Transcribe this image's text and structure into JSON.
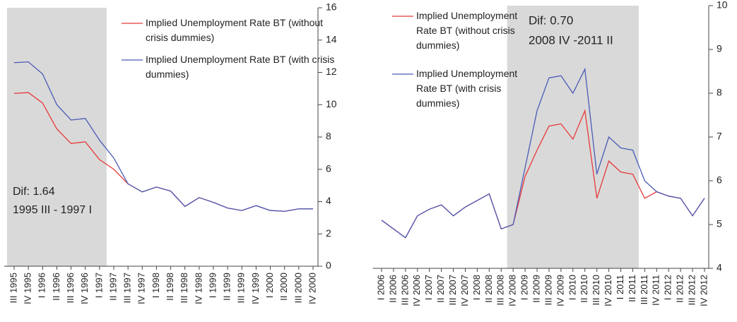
{
  "chart_data": [
    {
      "type": "line",
      "categories": [
        "III 1995",
        "IV 1995",
        "I 1996",
        "II 1996",
        "III 1996",
        "IV 1996",
        "I 1997",
        "II 1997",
        "III 1997",
        "IV 1997",
        "I 1998",
        "II 1998",
        "III 1998",
        "IV 1998",
        "I 1999",
        "II 1999",
        "III 1999",
        "IV 1999",
        "I 2000",
        "II 2000",
        "III 2000",
        "IV 2000"
      ],
      "series": [
        {
          "name": "Implied Unemployment  Rate BT (without crisis dummies)",
          "color": "#e8393a",
          "values": [
            10.7,
            10.75,
            10.1,
            8.5,
            7.6,
            7.7,
            6.6,
            6.0,
            5.1,
            4.6,
            4.9,
            4.65,
            3.7,
            4.25,
            3.95,
            3.6,
            3.45,
            3.75,
            3.45,
            3.4,
            3.55,
            3.55
          ]
        },
        {
          "name": "Implied Unemployment  Rate BT (with crisis dummies)",
          "color": "#4a5bb5",
          "values": [
            12.6,
            12.65,
            11.9,
            10.0,
            9.05,
            9.15,
            7.8,
            6.7,
            5.1,
            4.6,
            4.9,
            4.65,
            3.7,
            4.25,
            3.95,
            3.6,
            3.45,
            3.75,
            3.45,
            3.4,
            3.55,
            3.55
          ]
        }
      ],
      "ylim": [
        0,
        16
      ],
      "yticks": [
        0,
        2,
        4,
        6,
        8,
        10,
        12,
        14,
        16
      ],
      "highlight": [
        "III 1995",
        "I 1997"
      ],
      "annotation": [
        "Dif: 1.64",
        "1995 III - 1997 I"
      ]
    },
    {
      "type": "line",
      "categories": [
        "I 2006",
        "II 2006",
        "III 2006",
        "IV 2006",
        "I 2007",
        "II 2007",
        "III 2007",
        "IV 2007",
        "I 2008",
        "II 2008",
        "III 2008",
        "IV 2008",
        "I 2009",
        "II 2009",
        "III 2009",
        "IV 2009",
        "I 2010",
        "II 2010",
        "III 2010",
        "IV 2010",
        "I 2011",
        "II 2011",
        "III 2011",
        "IV 2011",
        "I 2012",
        "II 2012",
        "III 2012",
        "IV 2012"
      ],
      "series": [
        {
          "name": "Implied Unemployment Rate BT (without crisis dummies)",
          "color": "#e8393a",
          "values": [
            5.1,
            4.9,
            4.7,
            5.2,
            5.35,
            5.45,
            5.2,
            5.4,
            5.55,
            5.7,
            4.9,
            5.0,
            6.1,
            6.7,
            7.25,
            7.3,
            6.95,
            7.6,
            5.6,
            6.45,
            6.2,
            6.15,
            5.6,
            5.75,
            5.65,
            5.6,
            5.2,
            5.6
          ]
        },
        {
          "name": "Implied Unemployment Rate BT (with crisis dummies)",
          "color": "#4a5bb5",
          "values": [
            5.1,
            4.9,
            4.7,
            5.2,
            5.35,
            5.45,
            5.2,
            5.4,
            5.55,
            5.7,
            4.9,
            5.0,
            6.3,
            7.6,
            8.35,
            8.4,
            8.0,
            8.55,
            6.15,
            7.0,
            6.75,
            6.7,
            6.0,
            5.75,
            5.65,
            5.6,
            5.2,
            5.6
          ]
        }
      ],
      "ylim": [
        4,
        10
      ],
      "yticks": [
        4,
        5,
        6,
        7,
        8,
        9,
        10
      ],
      "highlight": [
        "IV 2008",
        "II 2011"
      ],
      "annotation": [
        "Dif: 0.70",
        "2008 IV -2011 II"
      ]
    }
  ]
}
